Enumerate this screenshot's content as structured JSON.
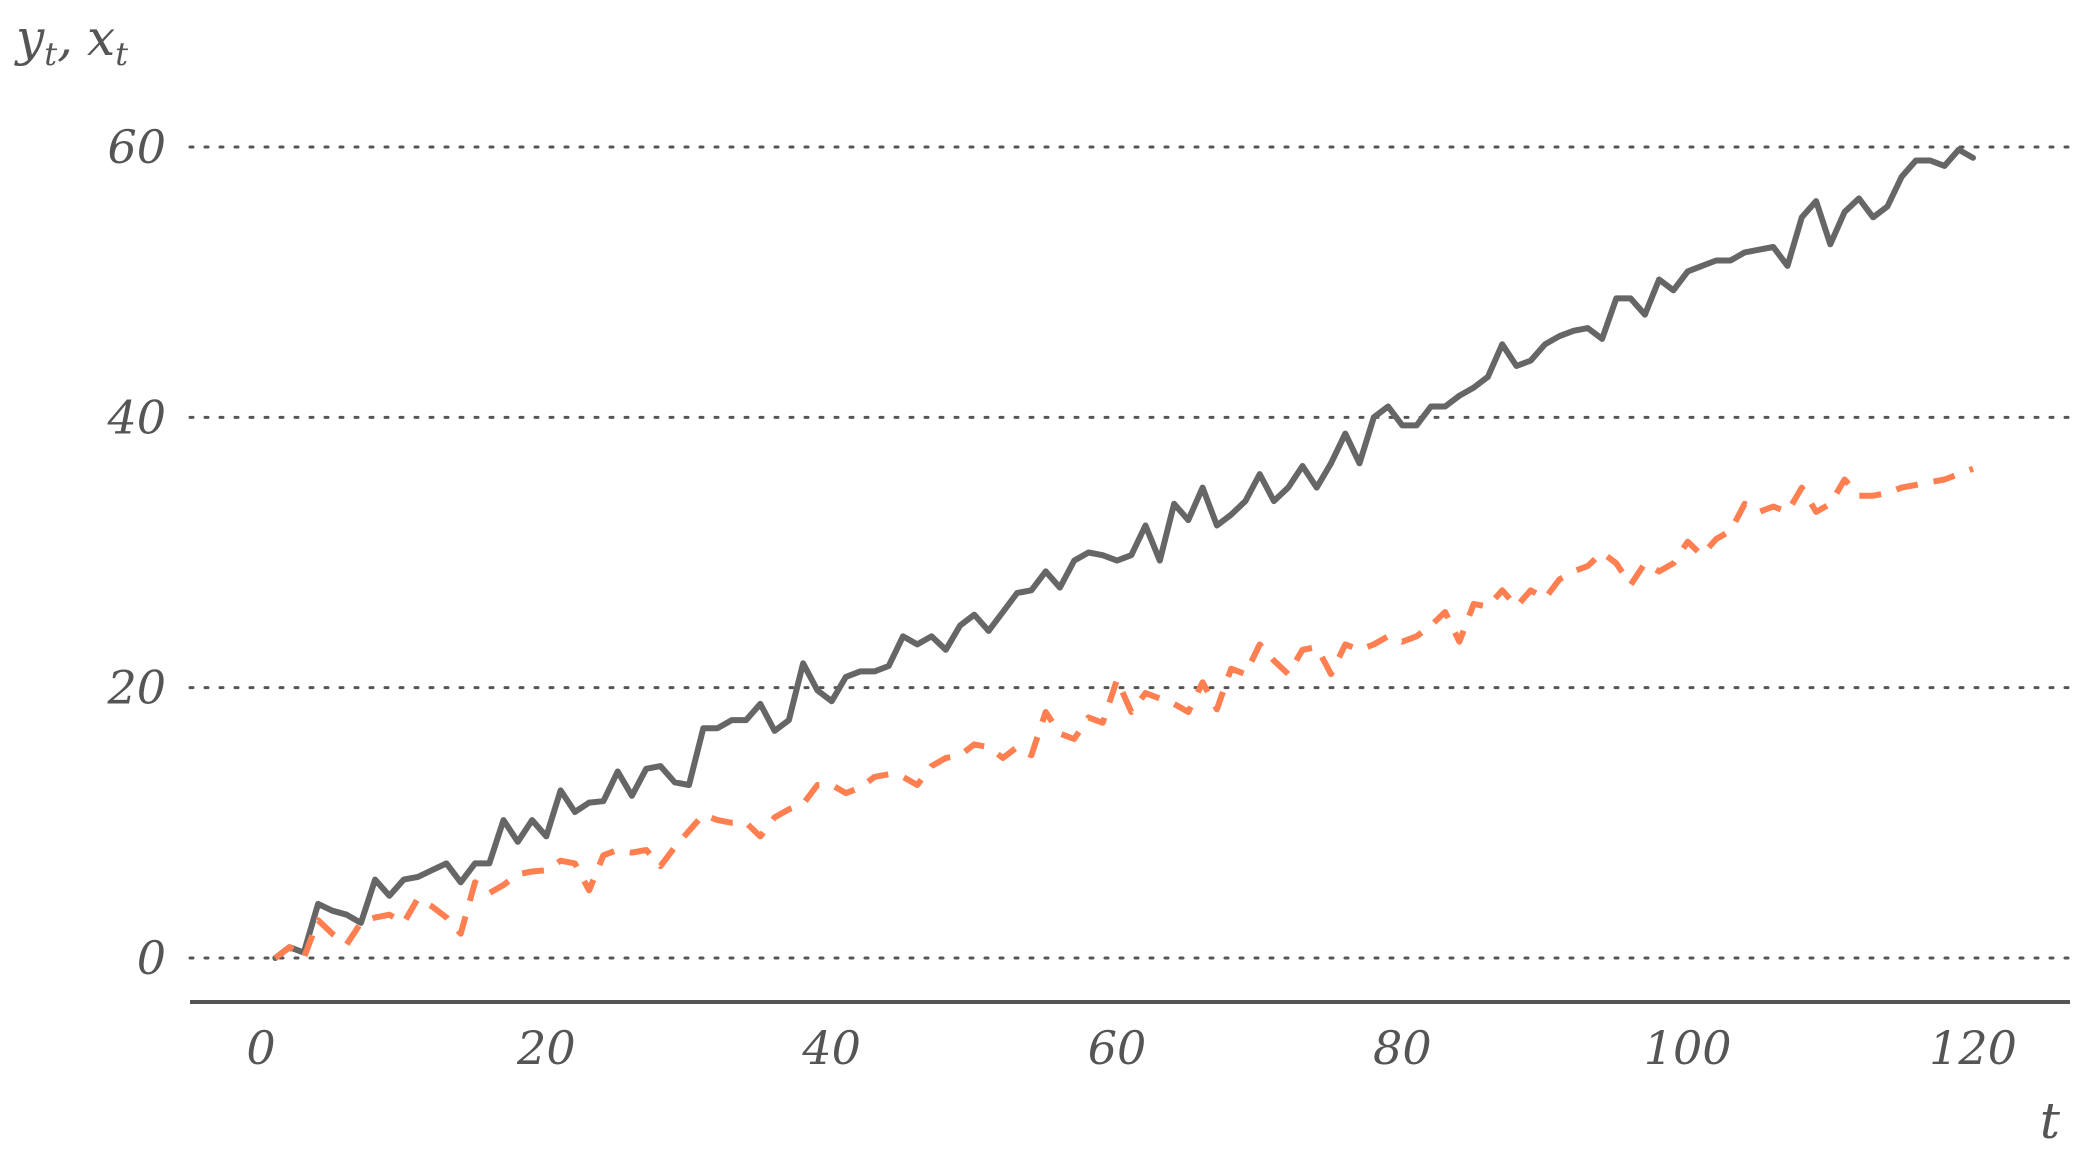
{
  "chart_data": {
    "type": "line",
    "title": "",
    "ylabel": "yt, xt",
    "ylabel_main_y": "y",
    "ylabel_sub_y": "t",
    "ylabel_sep": ",",
    "ylabel_main_x": "x",
    "ylabel_sub_x": "t",
    "xlabel": "t",
    "xlim": [
      -5,
      125
    ],
    "ylim": [
      -3,
      63
    ],
    "x_ticks": [
      0,
      20,
      40,
      60,
      80,
      100,
      120
    ],
    "y_ticks": [
      0,
      20,
      40,
      60
    ],
    "x_tick_labels": [
      "0",
      "20",
      "40",
      "60",
      "80",
      "100",
      "120"
    ],
    "y_tick_labels": [
      "0",
      "20",
      "40",
      "60"
    ],
    "grid": "horizontal-dotted",
    "series": [
      {
        "style": "solid",
        "color": "#666666",
        "x": [
          1,
          2,
          3,
          4,
          5,
          6,
          7,
          8,
          9,
          10,
          11,
          12,
          13,
          14,
          15,
          16,
          17,
          18,
          19,
          20,
          21,
          22,
          23,
          24,
          25,
          26,
          27,
          28,
          29,
          30,
          31,
          32,
          33,
          34,
          35,
          36,
          37,
          38,
          39,
          40,
          41,
          42,
          43,
          44,
          45,
          46,
          47,
          48,
          49,
          50,
          51,
          52,
          53,
          54,
          55,
          56,
          57,
          58,
          59,
          60,
          61,
          62,
          63,
          64,
          65,
          66,
          67,
          68,
          69,
          70,
          71,
          72,
          73,
          74,
          75,
          76,
          77,
          78,
          79,
          80,
          81,
          82,
          83,
          84,
          85,
          86,
          87,
          88,
          89,
          90,
          91,
          92,
          93,
          94,
          95,
          96,
          97,
          98,
          99,
          100,
          101,
          102,
          103,
          104,
          105,
          106,
          107,
          108,
          109,
          110,
          111,
          112,
          113,
          114,
          115,
          116,
          117,
          118,
          119,
          120
        ],
        "values": [
          0,
          0.8,
          0.4,
          4.0,
          3.5,
          3.2,
          2.6,
          5.8,
          4.6,
          5.8,
          6.0,
          6.5,
          7.0,
          5.6,
          7.0,
          7.0,
          10.2,
          8.6,
          10.2,
          9.0,
          12.4,
          10.8,
          11.5,
          11.6,
          13.8,
          12.0,
          14.0,
          14.2,
          13.0,
          12.8,
          17.0,
          17.0,
          17.6,
          17.6,
          18.8,
          16.8,
          17.6,
          21.8,
          19.8,
          19.0,
          20.8,
          21.2,
          21.2,
          21.6,
          23.8,
          23.2,
          23.8,
          22.8,
          24.6,
          25.4,
          24.2,
          25.6,
          27.0,
          27.2,
          28.6,
          27.4,
          29.4,
          30.0,
          29.8,
          29.4,
          29.8,
          32.0,
          29.4,
          33.6,
          32.4,
          34.8,
          32.0,
          32.8,
          33.8,
          35.8,
          33.8,
          34.8,
          36.4,
          34.8,
          36.6,
          38.8,
          36.6,
          40.0,
          40.8,
          39.4,
          39.4,
          40.8,
          40.8,
          41.6,
          42.2,
          43.0,
          45.4,
          43.8,
          44.2,
          45.4,
          46.0,
          46.4,
          46.6,
          45.8,
          48.8,
          48.8,
          47.6,
          50.2,
          49.4,
          50.8,
          51.2,
          51.6,
          51.6,
          52.2,
          52.4,
          52.6,
          51.2,
          54.8,
          56.0,
          52.8,
          55.2,
          56.2,
          54.8,
          55.6,
          57.8,
          59.0,
          59.0,
          58.6,
          59.8,
          59.2
        ]
      },
      {
        "style": "dashed",
        "color": "#ff7f50",
        "x": [
          1,
          2,
          3,
          4,
          5,
          6,
          7,
          8,
          9,
          10,
          11,
          12,
          13,
          14,
          15,
          16,
          17,
          18,
          19,
          20,
          21,
          22,
          23,
          24,
          25,
          26,
          27,
          28,
          29,
          30,
          31,
          32,
          33,
          34,
          35,
          36,
          37,
          38,
          39,
          40,
          41,
          42,
          43,
          44,
          45,
          46,
          47,
          48,
          49,
          50,
          51,
          52,
          53,
          54,
          55,
          56,
          57,
          58,
          59,
          60,
          61,
          62,
          63,
          64,
          65,
          66,
          67,
          68,
          69,
          70,
          71,
          72,
          73,
          74,
          75,
          76,
          77,
          78,
          79,
          80,
          81,
          82,
          83,
          84,
          85,
          86,
          87,
          88,
          89,
          90,
          91,
          92,
          93,
          94,
          95,
          96,
          97,
          98,
          99,
          100,
          101,
          102,
          103,
          104,
          105,
          106,
          107,
          108,
          109,
          110,
          111,
          112,
          113,
          114,
          115,
          116,
          117,
          118,
          119,
          120
        ],
        "values": [
          0,
          0.8,
          0,
          2.8,
          1.8,
          1.0,
          2.6,
          3.0,
          3.2,
          2.6,
          4.4,
          3.8,
          3.0,
          1.8,
          5.6,
          4.8,
          5.4,
          6.2,
          6.4,
          6.5,
          7.2,
          7.0,
          5.0,
          7.6,
          8.0,
          7.8,
          8.0,
          6.8,
          8.2,
          9.4,
          10.6,
          10.2,
          10.0,
          10.0,
          9.0,
          10.4,
          11.0,
          11.4,
          12.8,
          12.8,
          12.2,
          12.6,
          13.4,
          13.6,
          13.4,
          12.8,
          14.2,
          14.8,
          15.0,
          15.8,
          15.6,
          14.8,
          15.6,
          15.0,
          18.2,
          16.6,
          16.2,
          17.8,
          17.4,
          20.6,
          18.2,
          19.6,
          19.2,
          18.8,
          18.2,
          20.4,
          18.4,
          21.4,
          21.0,
          23.2,
          22.0,
          21.0,
          22.8,
          23.0,
          21.0,
          23.2,
          22.8,
          23.2,
          23.8,
          23.4,
          23.8,
          24.6,
          25.6,
          23.4,
          26.2,
          26.0,
          27.2,
          26.0,
          27.2,
          26.6,
          28.0,
          28.6,
          29.0,
          30.0,
          29.2,
          27.6,
          29.2,
          28.6,
          29.2,
          30.8,
          29.8,
          31.0,
          31.6,
          33.6,
          33.0,
          33.4,
          33.0,
          34.8,
          33.0,
          33.6,
          35.4,
          34.2,
          34.2,
          34.4,
          34.8,
          35.0,
          35.2,
          35.4,
          35.8,
          36.2
        ]
      }
    ]
  }
}
